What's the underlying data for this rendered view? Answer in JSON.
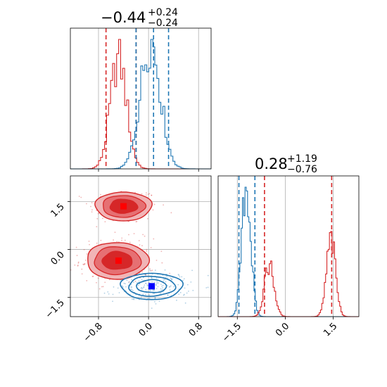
{
  "chart_data": {
    "type": "corner",
    "colors": {
      "red": "#d62728",
      "blue": "#1f77b4",
      "grid": "#b0b0b0"
    },
    "titles": [
      {
        "main": "−0.44",
        "sup": "+0.24",
        "sub": "−0.24"
      },
      {
        "main": "0.28",
        "sup": "+1.19",
        "sub": "−0.76"
      }
    ],
    "x_param": {
      "range": [
        -1.25,
        1.0
      ],
      "ticks": [
        {
          "value": -0.8,
          "label": "−0.8"
        },
        {
          "value": 0.0,
          "label": "0.0"
        },
        {
          "value": 0.8,
          "label": "0.8"
        }
      ]
    },
    "y_param": {
      "range": [
        -2.1,
        2.3
      ],
      "ticks": [
        {
          "value": -1.5,
          "label": "−1.5"
        },
        {
          "value": 0.0,
          "label": "0.0"
        },
        {
          "value": 1.5,
          "label": "1.5"
        }
      ]
    },
    "hist_top": {
      "quantile_lines": {
        "red": [
          -0.68,
          -0.2,
          -0.2
        ],
        "blue": [
          -0.2,
          0.08,
          0.32
        ]
      },
      "series": [
        {
          "color": "red",
          "peak_x": -0.48,
          "width": 0.13
        },
        {
          "color": "blue",
          "peak_x": 0.03,
          "width": 0.16
        }
      ]
    },
    "hist_right": {
      "quantile_lines": {
        "red": [
          -0.65,
          1.45
        ],
        "blue": [
          -1.45,
          -0.95
        ]
      },
      "series": [
        {
          "color": "blue",
          "modes": [
            {
              "center": -1.22,
              "width": 0.14,
              "weight": 1.0
            }
          ]
        },
        {
          "color": "red",
          "modes": [
            {
              "center": -0.5,
              "width": 0.15,
              "weight": 0.55
            },
            {
              "center": 1.43,
              "width": 0.14,
              "weight": 0.82
            }
          ]
        }
      ]
    },
    "scatter_2d": {
      "red_clusters": [
        {
          "mean": [
            -0.4,
            1.35
          ],
          "sx": 0.22,
          "sy": 0.22
        },
        {
          "mean": [
            -0.5,
            -0.35
          ],
          "sx": 0.24,
          "sy": 0.28
        }
      ],
      "blue_cluster": {
        "mean": [
          0.05,
          -1.15
        ],
        "sx": 0.24,
        "sy": 0.2
      },
      "markers": [
        {
          "color": "red",
          "x": -0.4,
          "y": 1.35
        },
        {
          "color": "red",
          "x": -0.48,
          "y": -0.35
        },
        {
          "color": "blue",
          "x": 0.05,
          "y": -1.15
        }
      ]
    }
  }
}
